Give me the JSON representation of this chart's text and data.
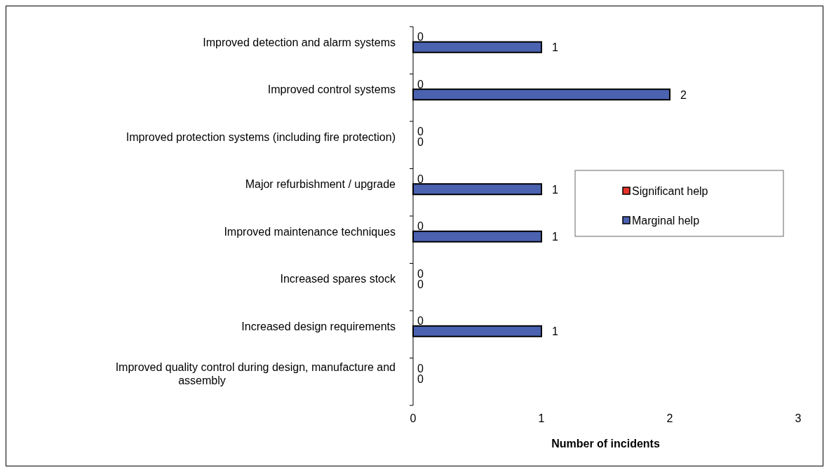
{
  "chart_data": {
    "type": "bar",
    "orientation": "horizontal",
    "xlabel": "Number of incidents",
    "categories": [
      "Improved detection and alarm systems",
      "Improved control systems",
      "Improved protection systems (including fire protection)",
      "Major refurbishment / upgrade",
      "Improved maintenance techniques",
      "Increased spares stock",
      "Increased design requirements",
      "Improved quality control during design, manufacture and assembly"
    ],
    "series": [
      {
        "name": "Significant help",
        "color": "#e8322a",
        "values": [
          0,
          0,
          0,
          0,
          0,
          0,
          0,
          0
        ]
      },
      {
        "name": "Marginal help",
        "color": "#4a62b0",
        "values": [
          1,
          2,
          0,
          1,
          1,
          0,
          1,
          0
        ]
      }
    ],
    "xlim": [
      0,
      3
    ],
    "xticks": [
      0,
      1,
      2,
      3
    ],
    "data_labels": true,
    "legend": "right",
    "grid": false
  }
}
